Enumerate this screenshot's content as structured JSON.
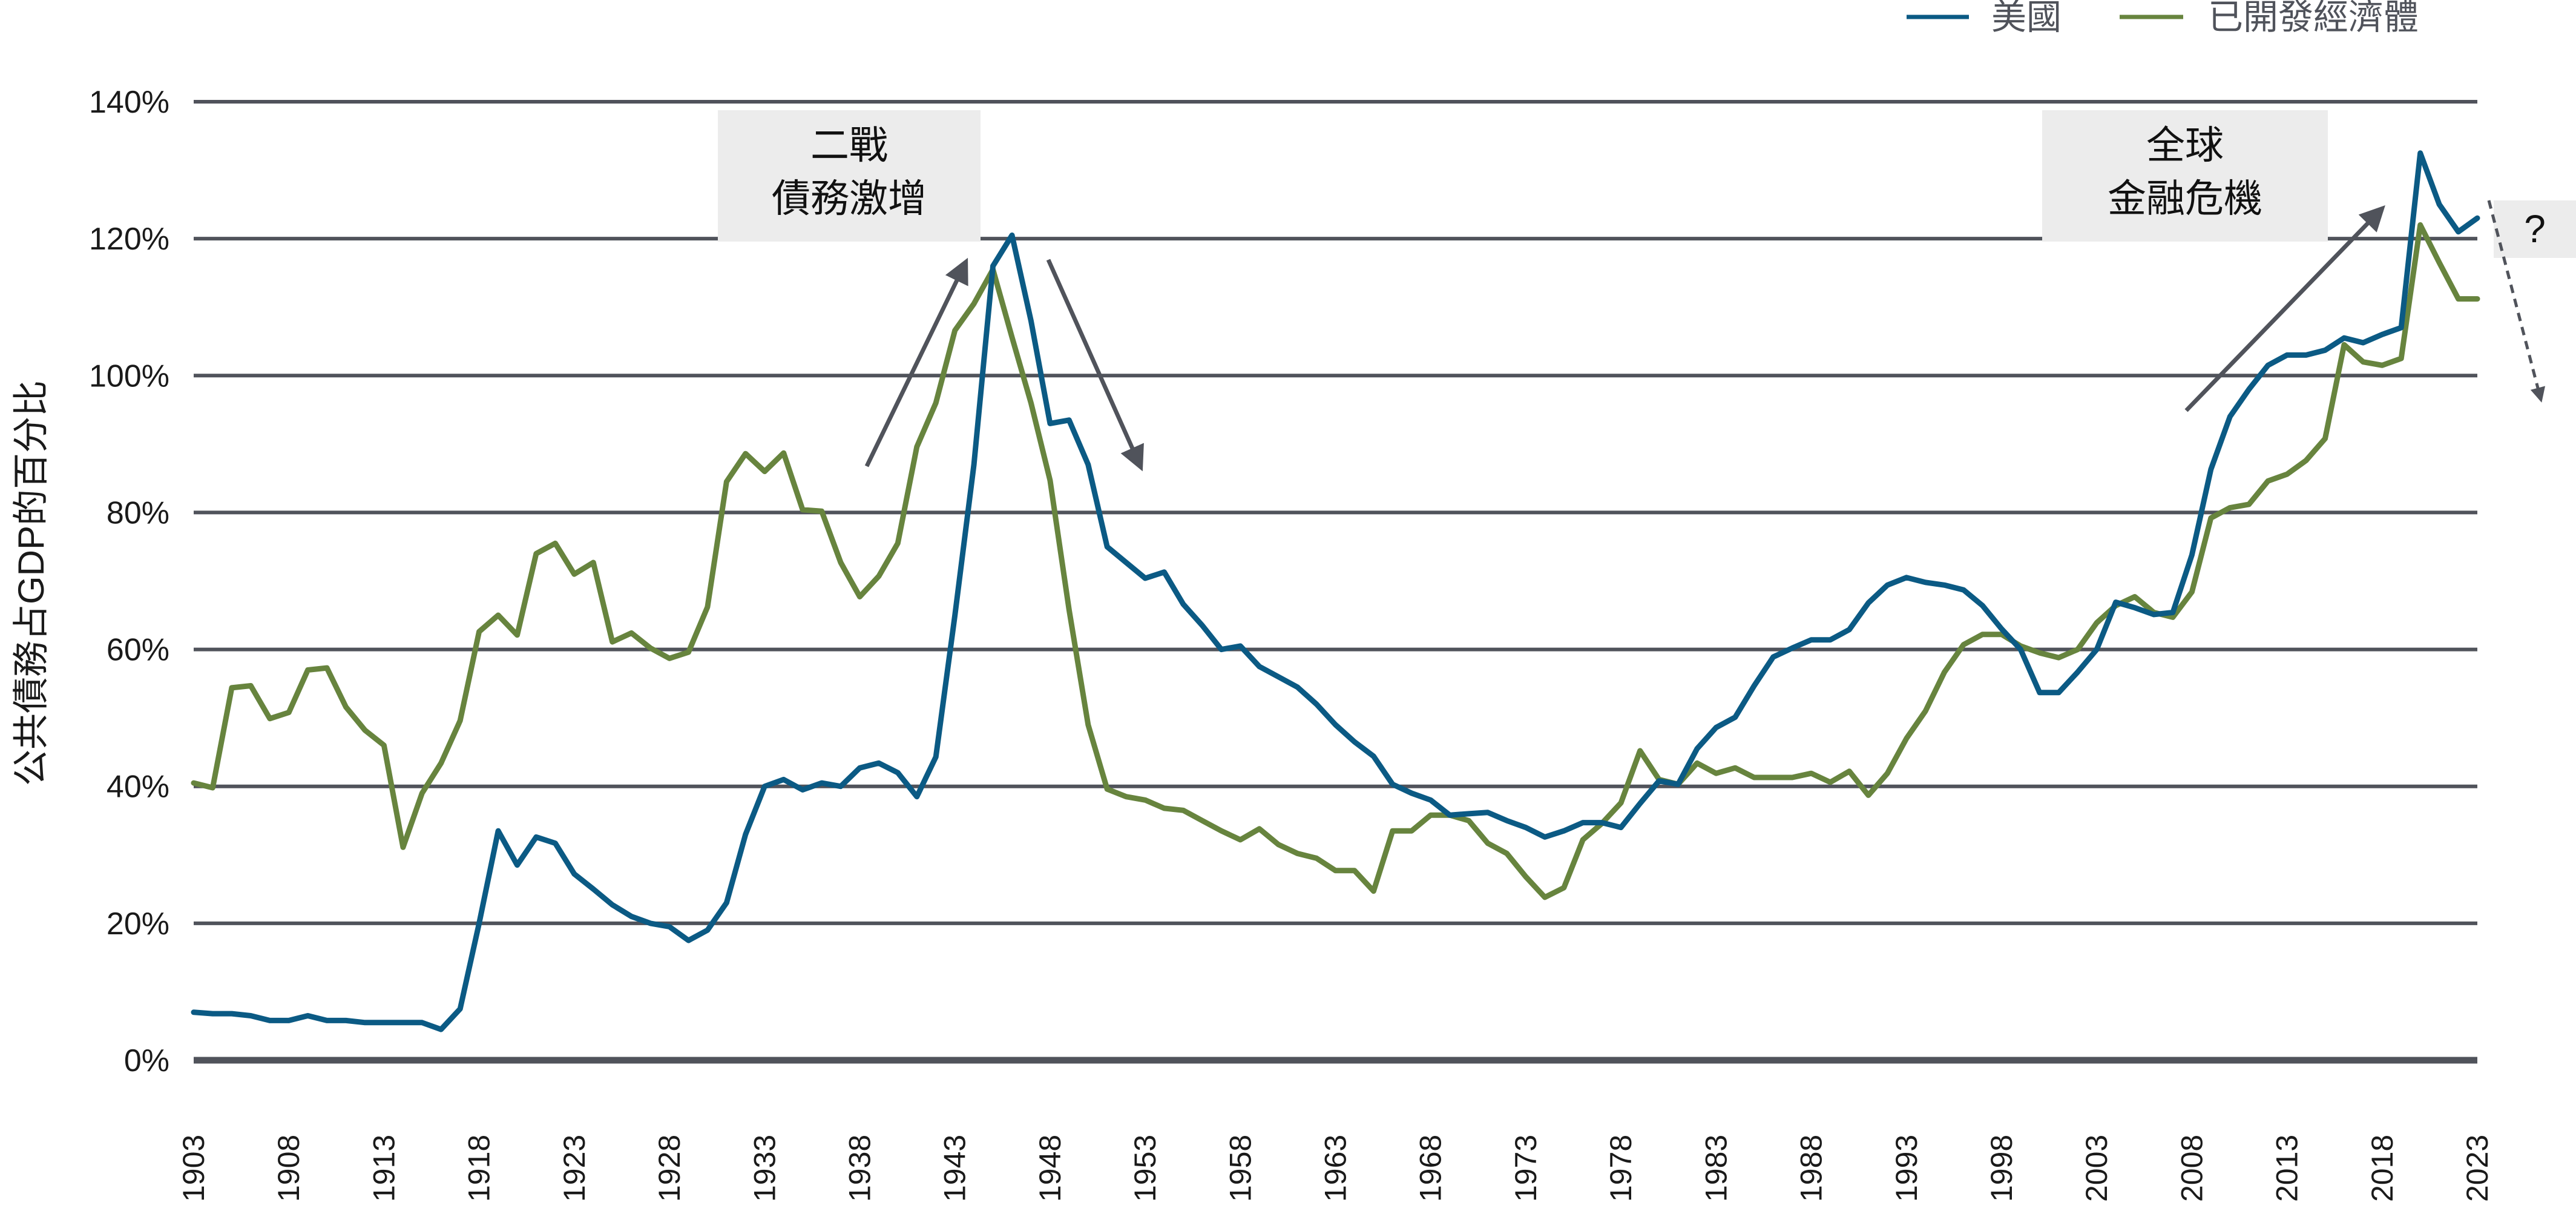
{
  "chart_data": {
    "type": "line",
    "title": "",
    "xlabel": "",
    "ylabel": "公共債務占GDP的百分比",
    "ylim": [
      0,
      140
    ],
    "yticks": [
      "0%",
      "20%",
      "40%",
      "60%",
      "80%",
      "100%",
      "120%",
      "140%"
    ],
    "ytick_values": [
      0,
      20,
      40,
      60,
      80,
      100,
      120,
      140
    ],
    "xlim": [
      1903,
      2023
    ],
    "xticks": [
      "1903",
      "1908",
      "1913",
      "1918",
      "1923",
      "1928",
      "1933",
      "1938",
      "1943",
      "1948",
      "1953",
      "1958",
      "1963",
      "1968",
      "1973",
      "1978",
      "1983",
      "1988",
      "1993",
      "1998",
      "2003",
      "2008",
      "2013",
      "2018",
      "2023"
    ],
    "grid": "horizontal",
    "legend_position": "top-right",
    "x_start": 1903,
    "series": [
      {
        "name": "美國",
        "color": "#0b5a84",
        "values": [
          7,
          6.8,
          6.8,
          6.5,
          5.8,
          5.8,
          6.5,
          5.8,
          5.8,
          5.5,
          5.5,
          5.5,
          5.5,
          4.5,
          7.5,
          20,
          33.5,
          28.5,
          32.6,
          31.7,
          27.2,
          25,
          22.7,
          21,
          20,
          19.5,
          17.5,
          19,
          23,
          33,
          40,
          41,
          39.5,
          40.5,
          40,
          42.7,
          43.4,
          42,
          38.5,
          44.3,
          65,
          87,
          116,
          120.5,
          108,
          93,
          93.5,
          87,
          75,
          72.7,
          70.4,
          71.3,
          66.6,
          63.5,
          60,
          60.5,
          57.5,
          56,
          54.5,
          52,
          49,
          46.5,
          44.4,
          40.3,
          39,
          38,
          35.8,
          36,
          36.2,
          35,
          34,
          32.6,
          33.5,
          34.7,
          34.7,
          34,
          37.5,
          40.8,
          40.3,
          45.5,
          48.6,
          50.1,
          54.7,
          58.9,
          60.2,
          61.4,
          61.4,
          62.9,
          66.8,
          69.4,
          70.5,
          69.8,
          69.4,
          68.7,
          66.4,
          63,
          60,
          53.7,
          53.7,
          56.7,
          60,
          66.9,
          66.1,
          65.1,
          65.4,
          73.8,
          86.3,
          94,
          98,
          101.5,
          103,
          103,
          103.7,
          105.5,
          104.8,
          106,
          107,
          132.5,
          125,
          121,
          123
        ]
      },
      {
        "name": "已開發經濟體",
        "color": "#67843e",
        "values": [
          40.5,
          39.8,
          54.4,
          54.7,
          49.9,
          50.8,
          57,
          57.3,
          51.6,
          48.2,
          46,
          31.1,
          39,
          43.4,
          49.6,
          62.6,
          65,
          62.1,
          74,
          75.5,
          71,
          72.7,
          61.1,
          62.4,
          60.2,
          58.7,
          59.6,
          66.2,
          84.5,
          88.6,
          86,
          88.7,
          80.4,
          80.2,
          72.7,
          67.7,
          70.7,
          75.5,
          89.6,
          96,
          106.6,
          110.5,
          115.5,
          105.6,
          96,
          84.7,
          65.8,
          49,
          39.6,
          38.5,
          38,
          36.8,
          36.5,
          35,
          33.5,
          32.2,
          33.8,
          31.5,
          30.2,
          29.5,
          27.7,
          27.7,
          24.7,
          33.5,
          33.5,
          35.8,
          35.8,
          35,
          31.7,
          30.2,
          26.8,
          23.8,
          25.2,
          32.2,
          34.6,
          37.6,
          45.2,
          41,
          40.3,
          43.4,
          41.9,
          42.7,
          41.3,
          41.3,
          41.3,
          41.9,
          40.6,
          42.2,
          38.7,
          41.9,
          47,
          51,
          56.7,
          60.7,
          62.2,
          62.2,
          60.5,
          59.5,
          58.8,
          60,
          63.9,
          66.4,
          67.7,
          65.4,
          64.7,
          68.4,
          79.2,
          80.7,
          81.2,
          84.6,
          85.6,
          87.6,
          90.8,
          104.5,
          102,
          101.5,
          102.5,
          122,
          116.5,
          111.2,
          111.2
        ]
      }
    ],
    "annotations": [
      {
        "lines": [
          "二戰",
          "債務激增"
        ]
      },
      {
        "lines": [
          "全球",
          "金融危機"
        ]
      },
      {
        "lines": [
          "?"
        ]
      }
    ]
  }
}
